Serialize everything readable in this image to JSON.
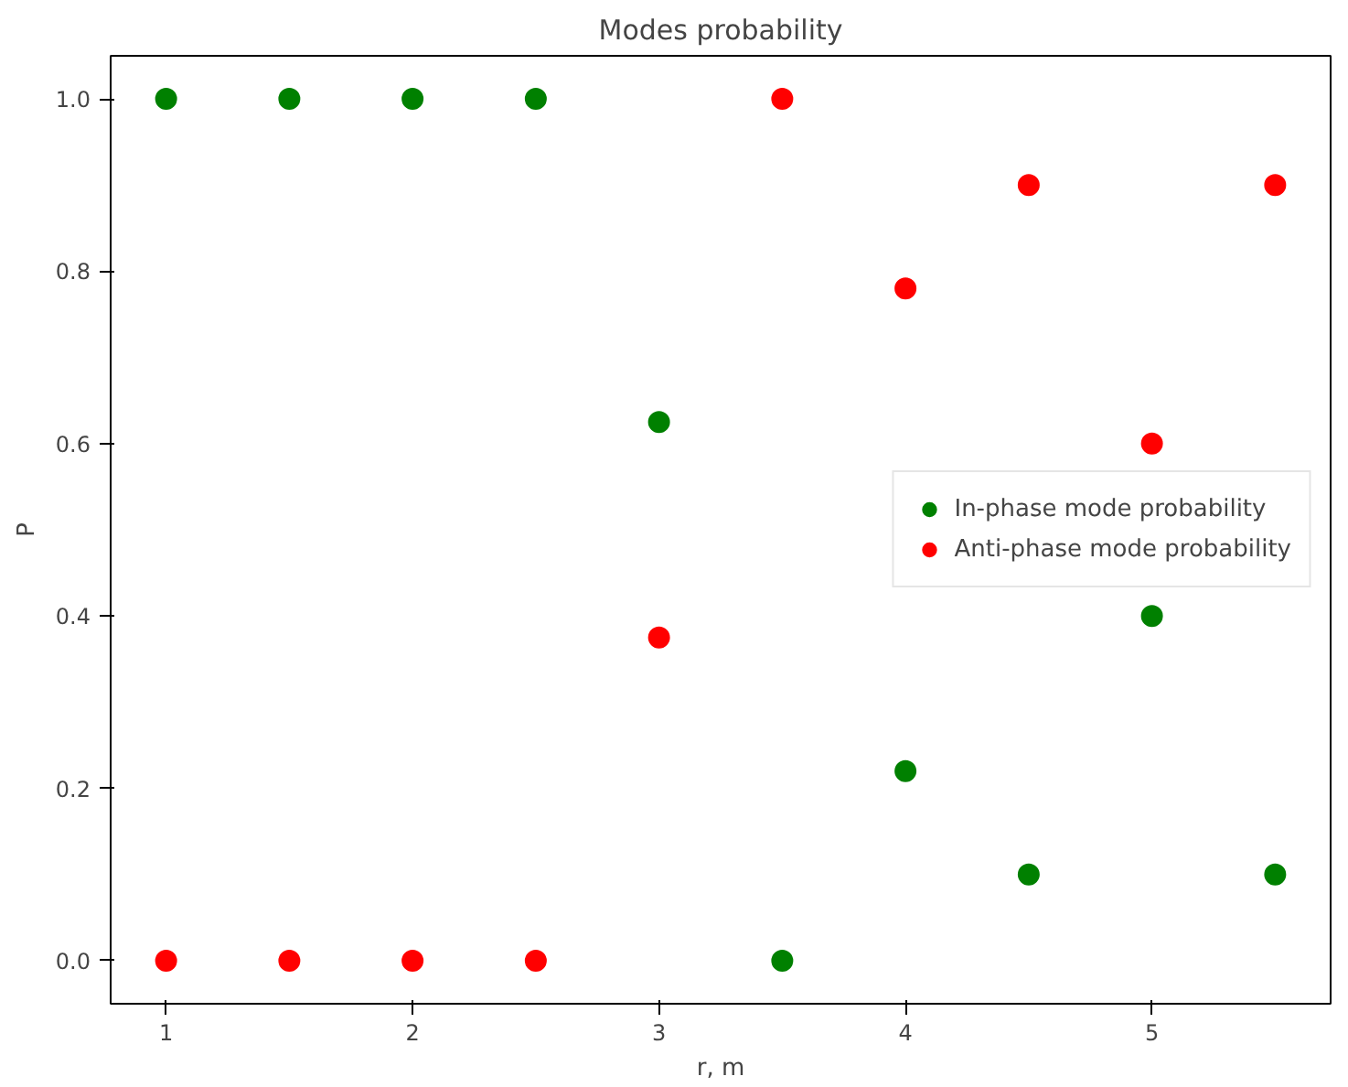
{
  "chart_data": {
    "type": "scatter",
    "title": "Modes probability",
    "xlabel": "r, m",
    "ylabel": "P",
    "x": [
      1,
      1.5,
      2,
      2.5,
      3,
      3.5,
      4,
      4.5,
      5,
      5.5
    ],
    "series": [
      {
        "name": "In-phase mode probability",
        "color": "#008000",
        "values": [
          1,
          1,
          1,
          1,
          0.625,
          0,
          0.22,
          0.1,
          0.4,
          0.1
        ]
      },
      {
        "name": "Anti-phase mode probability",
        "color": "#ff0000",
        "values": [
          0,
          0,
          0,
          0,
          0.375,
          1,
          0.78,
          0.9,
          0.6,
          0.9
        ]
      }
    ],
    "xlim": [
      0.775,
      5.725
    ],
    "ylim": [
      -0.05,
      1.05
    ],
    "xticks": [
      1,
      2,
      3,
      4,
      5
    ],
    "yticks": [
      {
        "value": 0,
        "label": "0.0"
      },
      {
        "value": 0.2,
        "label": "0.2"
      },
      {
        "value": 0.4,
        "label": "0.4"
      },
      {
        "value": 0.6,
        "label": "0.6"
      },
      {
        "value": 0.8,
        "label": "0.8"
      },
      {
        "value": 1,
        "label": "1.0"
      }
    ],
    "grid": false,
    "legend": "right",
    "marker": "circle"
  }
}
